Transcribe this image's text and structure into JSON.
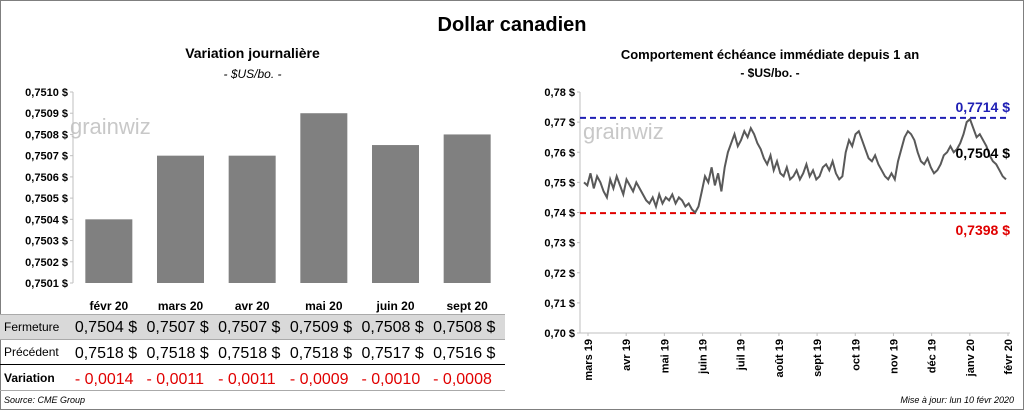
{
  "title": "Dollar canadien",
  "source": "Source: CME Group",
  "updated": "Mise à jour: lun 10 févr 2020",
  "watermark": "grainwiz",
  "colors": {
    "bar": "#808080",
    "line": "#595959",
    "high": "#1f1fb4",
    "low": "#e00000",
    "negative": "#e00000"
  },
  "left": {
    "title": "Variation  journalière",
    "unit": "- $US/bo. -",
    "table": {
      "labels": {
        "close": "Fermeture",
        "previous": "Précédent",
        "change": "Variation"
      },
      "close": [
        "0,7504  $",
        "0,7507  $",
        "0,7507  $",
        "0,7509  $",
        "0,7508  $",
        "0,7508  $"
      ],
      "previous": [
        "0,7518  $",
        "0,7518  $",
        "0,7518  $",
        "0,7518  $",
        "0,7517  $",
        "0,7516  $"
      ],
      "change": [
        "- 0,0014",
        "- 0,0011",
        "- 0,0011",
        "- 0,0009",
        "- 0,0010",
        "- 0,0008"
      ]
    }
  },
  "right": {
    "title": "Comportement échéance immédiate depuis 1 an",
    "unit": "- $US/bo. -",
    "high_label": "0,7714  $",
    "low_label": "0,7398  $",
    "last_label": "0,7504 $"
  },
  "chart_data": [
    {
      "type": "bar",
      "title": "Variation  journalière",
      "categories": [
        "févr 20",
        "mars 20",
        "avr 20",
        "mai 20",
        "juin 20",
        "sept 20"
      ],
      "values": [
        0.7504,
        0.7507,
        0.7507,
        0.7509,
        0.75075,
        0.7508
      ],
      "ylim": [
        0.7501,
        0.751
      ],
      "yticks": [
        0.7501,
        0.7502,
        0.7503,
        0.7504,
        0.7505,
        0.7506,
        0.7507,
        0.7508,
        0.7509,
        0.751
      ],
      "ytick_labels": [
        "0,7501 $",
        "0,7502 $",
        "0,7503 $",
        "0,7504 $",
        "0,7505 $",
        "0,7506 $",
        "0,7507 $",
        "0,7508 $",
        "0,7509 $",
        "0,7510 $"
      ]
    },
    {
      "type": "line",
      "title": "Comportement échéance immédiate depuis 1 an",
      "ylim": [
        0.7,
        0.78
      ],
      "yticks": [
        0.7,
        0.71,
        0.72,
        0.73,
        0.74,
        0.75,
        0.76,
        0.77,
        0.78
      ],
      "ytick_labels": [
        "0,70 $",
        "0,71 $",
        "0,72 $",
        "0,73 $",
        "0,74 $",
        "0,75 $",
        "0,76 $",
        "0,77 $",
        "0,78 $"
      ],
      "xticks": [
        "mars 19",
        "avr 19",
        "mai 19",
        "juin 19",
        "juil 19",
        "août 19",
        "sept 19",
        "oct 19",
        "nov 19",
        "déc 19",
        "janv 20",
        "févr 20"
      ],
      "series": [
        {
          "name": "Échéance immédiate",
          "values": [
            0.75,
            0.749,
            0.753,
            0.748,
            0.752,
            0.75,
            0.747,
            0.745,
            0.751,
            0.748,
            0.752,
            0.749,
            0.746,
            0.751,
            0.749,
            0.747,
            0.75,
            0.748,
            0.746,
            0.744,
            0.743,
            0.745,
            0.742,
            0.746,
            0.743,
            0.745,
            0.744,
            0.746,
            0.743,
            0.745,
            0.744,
            0.742,
            0.743,
            0.741,
            0.74,
            0.742,
            0.747,
            0.752,
            0.75,
            0.755,
            0.749,
            0.753,
            0.747,
            0.755,
            0.76,
            0.763,
            0.766,
            0.762,
            0.764,
            0.767,
            0.765,
            0.768,
            0.766,
            0.763,
            0.761,
            0.758,
            0.756,
            0.759,
            0.754,
            0.757,
            0.753,
            0.752,
            0.755,
            0.751,
            0.752,
            0.754,
            0.751,
            0.753,
            0.756,
            0.752,
            0.754,
            0.751,
            0.752,
            0.755,
            0.756,
            0.754,
            0.757,
            0.753,
            0.751,
            0.752,
            0.76,
            0.764,
            0.762,
            0.766,
            0.767,
            0.764,
            0.761,
            0.758,
            0.757,
            0.759,
            0.756,
            0.754,
            0.752,
            0.751,
            0.753,
            0.751,
            0.757,
            0.761,
            0.765,
            0.767,
            0.766,
            0.764,
            0.76,
            0.757,
            0.756,
            0.758,
            0.755,
            0.753,
            0.754,
            0.756,
            0.759,
            0.76,
            0.762,
            0.76,
            0.761,
            0.763,
            0.766,
            0.77,
            0.771,
            0.768,
            0.765,
            0.766,
            0.764,
            0.762,
            0.759,
            0.757,
            0.756,
            0.754,
            0.752,
            0.751
          ]
        }
      ],
      "high_line": 0.7714,
      "low_line": 0.7398
    }
  ]
}
